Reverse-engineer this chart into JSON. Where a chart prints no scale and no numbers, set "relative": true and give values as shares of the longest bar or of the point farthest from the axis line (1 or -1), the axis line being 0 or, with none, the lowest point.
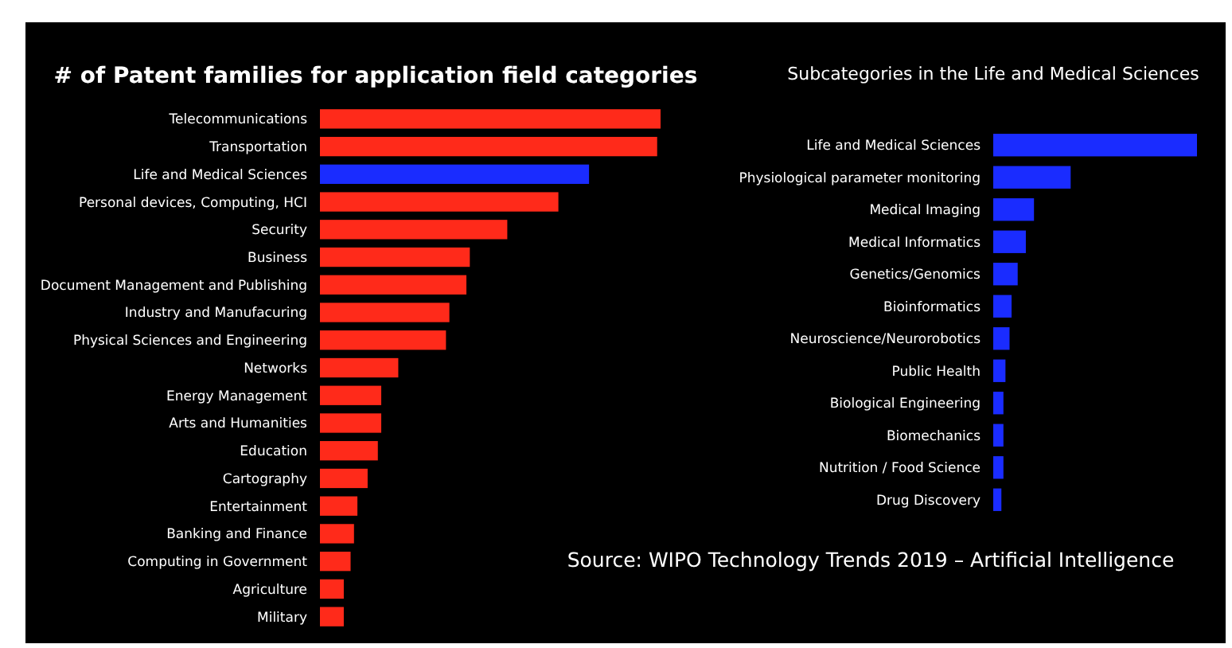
{
  "chart_data": [
    {
      "type": "bar",
      "orientation": "horizontal",
      "relative": true,
      "title": "# of Patent families for application field categories",
      "categories": [
        "Telecommunications",
        "Transportation",
        "Life and Medical Sciences",
        "Personal devices, Computing, HCI",
        "Security",
        "Business",
        "Document Management and Publishing",
        "Industry and Manufacuring",
        "Physical Sciences and Engineering",
        "Networks",
        "Energy Management",
        "Arts and Humanities",
        "Education",
        "Cartography",
        "Entertainment",
        "Banking and Finance",
        "Computing in Government",
        "Agriculture",
        "Military"
      ],
      "values": [
        1,
        0.99,
        0.79,
        0.7,
        0.55,
        0.44,
        0.43,
        0.38,
        0.37,
        0.23,
        0.18,
        0.18,
        0.17,
        0.14,
        0.11,
        0.1,
        0.09,
        0.07,
        0.07
      ],
      "colors": [
        "#ff2a1a",
        "#ff2a1a",
        "#1a2cff",
        "#ff2a1a",
        "#ff2a1a",
        "#ff2a1a",
        "#ff2a1a",
        "#ff2a1a",
        "#ff2a1a",
        "#ff2a1a",
        "#ff2a1a",
        "#ff2a1a",
        "#ff2a1a",
        "#ff2a1a",
        "#ff2a1a",
        "#ff2a1a",
        "#ff2a1a",
        "#ff2a1a",
        "#ff2a1a"
      ]
    },
    {
      "type": "bar",
      "orientation": "horizontal",
      "relative": true,
      "title": "Subcategories  in the Life and Medical Sciences",
      "categories": [
        "Life and Medical Sciences",
        "Physiological parameter monitoring",
        "Medical Imaging",
        "Medical Informatics",
        "Genetics/Genomics",
        "Bioinformatics",
        "Neuroscience/Neurorobotics",
        "Public Health",
        "Biological Engineering",
        "Biomechanics",
        "Nutrition / Food Science",
        "Drug Discovery"
      ],
      "values": [
        1,
        0.38,
        0.2,
        0.16,
        0.12,
        0.09,
        0.08,
        0.06,
        0.05,
        0.05,
        0.05,
        0.04
      ],
      "color": "#1a2cff",
      "annotations": [
        "Source:  WIPO Technology Trends 2019 – Artificial Intelligence"
      ]
    }
  ]
}
